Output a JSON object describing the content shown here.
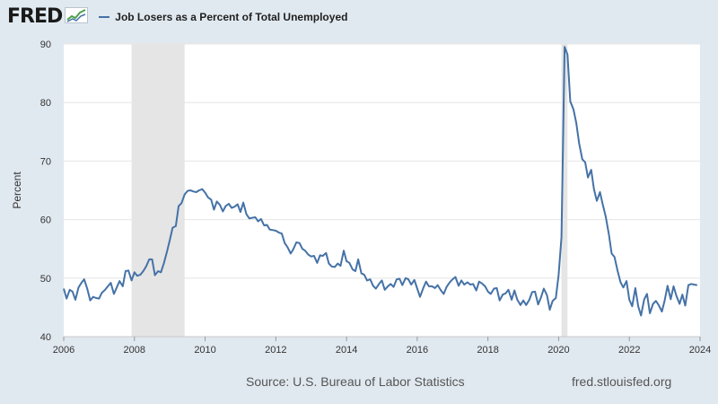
{
  "header": {
    "logo_text": "FRED",
    "logo_icon": "trend-chart-icon",
    "legend_label": "Job Losers as a Percent of Total Unemployed"
  },
  "footer": {
    "source": "Source: U.S. Bureau of Labor Statistics",
    "site": "fred.stlouisfed.org"
  },
  "colors": {
    "series": "#4572a7",
    "recession": "#e5e5e5",
    "background": "#e1e9f0",
    "plot": "#ffffff",
    "grid": "#e6e6e6"
  },
  "chart_data": {
    "type": "line",
    "title": "",
    "xlabel": "",
    "ylabel": "Percent",
    "xlim": [
      2006.0,
      2024.0
    ],
    "ylim": [
      40,
      90
    ],
    "yticks": [
      40,
      50,
      60,
      70,
      80,
      90
    ],
    "xticks": [
      2006,
      2008,
      2010,
      2012,
      2014,
      2016,
      2018,
      2020,
      2022,
      2024
    ],
    "grid": "horizontal",
    "legend": "top-left",
    "recessions": [
      [
        2007.92,
        2009.42
      ],
      [
        2020.08,
        2020.25
      ]
    ],
    "series": [
      {
        "name": "Job Losers as a Percent of Total Unemployed",
        "points": [
          [
            2006.0,
            48.2
          ],
          [
            2006.08,
            46.5
          ],
          [
            2006.17,
            48.0
          ],
          [
            2006.25,
            47.7
          ],
          [
            2006.33,
            46.3
          ],
          [
            2006.42,
            48.4
          ],
          [
            2006.5,
            49.2
          ],
          [
            2006.58,
            49.8
          ],
          [
            2006.67,
            48.1
          ],
          [
            2006.75,
            46.2
          ],
          [
            2006.83,
            46.8
          ],
          [
            2006.92,
            46.6
          ],
          [
            2007.0,
            46.5
          ],
          [
            2007.08,
            47.5
          ],
          [
            2007.17,
            48.0
          ],
          [
            2007.25,
            48.6
          ],
          [
            2007.33,
            49.2
          ],
          [
            2007.42,
            47.3
          ],
          [
            2007.5,
            48.4
          ],
          [
            2007.58,
            49.5
          ],
          [
            2007.67,
            48.6
          ],
          [
            2007.75,
            51.2
          ],
          [
            2007.83,
            51.3
          ],
          [
            2007.92,
            49.6
          ],
          [
            2008.0,
            51.0
          ],
          [
            2008.08,
            50.4
          ],
          [
            2008.17,
            50.6
          ],
          [
            2008.25,
            51.2
          ],
          [
            2008.33,
            52.0
          ],
          [
            2008.42,
            53.2
          ],
          [
            2008.5,
            53.2
          ],
          [
            2008.58,
            50.5
          ],
          [
            2008.67,
            51.2
          ],
          [
            2008.75,
            51.0
          ],
          [
            2008.83,
            52.5
          ],
          [
            2008.92,
            54.5
          ],
          [
            2009.0,
            56.5
          ],
          [
            2009.08,
            58.6
          ],
          [
            2009.17,
            58.9
          ],
          [
            2009.25,
            62.3
          ],
          [
            2009.33,
            62.8
          ],
          [
            2009.42,
            64.3
          ],
          [
            2009.5,
            64.9
          ],
          [
            2009.58,
            65.0
          ],
          [
            2009.67,
            64.8
          ],
          [
            2009.75,
            64.7
          ],
          [
            2009.83,
            65.0
          ],
          [
            2009.92,
            65.2
          ],
          [
            2010.0,
            64.6
          ],
          [
            2010.08,
            63.8
          ],
          [
            2010.17,
            63.4
          ],
          [
            2010.25,
            61.7
          ],
          [
            2010.33,
            63.1
          ],
          [
            2010.42,
            62.5
          ],
          [
            2010.5,
            61.4
          ],
          [
            2010.58,
            62.3
          ],
          [
            2010.67,
            62.7
          ],
          [
            2010.75,
            62.0
          ],
          [
            2010.83,
            62.2
          ],
          [
            2010.92,
            62.6
          ],
          [
            2011.0,
            61.3
          ],
          [
            2011.08,
            62.9
          ],
          [
            2011.17,
            60.9
          ],
          [
            2011.25,
            60.2
          ],
          [
            2011.33,
            60.3
          ],
          [
            2011.42,
            60.4
          ],
          [
            2011.5,
            59.7
          ],
          [
            2011.58,
            60.1
          ],
          [
            2011.67,
            59.0
          ],
          [
            2011.75,
            59.1
          ],
          [
            2011.83,
            58.3
          ],
          [
            2011.92,
            58.2
          ],
          [
            2012.0,
            58.1
          ],
          [
            2012.08,
            57.8
          ],
          [
            2012.17,
            57.6
          ],
          [
            2012.25,
            56.0
          ],
          [
            2012.33,
            55.3
          ],
          [
            2012.42,
            54.2
          ],
          [
            2012.5,
            55.0
          ],
          [
            2012.58,
            56.1
          ],
          [
            2012.67,
            56.0
          ],
          [
            2012.75,
            55.0
          ],
          [
            2012.83,
            54.7
          ],
          [
            2012.92,
            54.0
          ],
          [
            2013.0,
            53.7
          ],
          [
            2013.08,
            53.8
          ],
          [
            2013.17,
            52.6
          ],
          [
            2013.25,
            53.9
          ],
          [
            2013.33,
            53.8
          ],
          [
            2013.42,
            54.3
          ],
          [
            2013.5,
            52.5
          ],
          [
            2013.58,
            52.0
          ],
          [
            2013.67,
            51.9
          ],
          [
            2013.75,
            52.5
          ],
          [
            2013.83,
            52.1
          ],
          [
            2013.92,
            54.7
          ],
          [
            2014.0,
            52.9
          ],
          [
            2014.08,
            52.6
          ],
          [
            2014.17,
            51.5
          ],
          [
            2014.25,
            51.2
          ],
          [
            2014.33,
            53.2
          ],
          [
            2014.42,
            50.8
          ],
          [
            2014.5,
            50.6
          ],
          [
            2014.58,
            49.6
          ],
          [
            2014.67,
            49.8
          ],
          [
            2014.75,
            48.7
          ],
          [
            2014.83,
            48.2
          ],
          [
            2014.92,
            49.0
          ],
          [
            2015.0,
            49.6
          ],
          [
            2015.08,
            48.0
          ],
          [
            2015.17,
            48.6
          ],
          [
            2015.25,
            49.0
          ],
          [
            2015.33,
            48.5
          ],
          [
            2015.42,
            49.8
          ],
          [
            2015.5,
            49.9
          ],
          [
            2015.58,
            48.8
          ],
          [
            2015.67,
            50.0
          ],
          [
            2015.75,
            49.8
          ],
          [
            2015.83,
            48.9
          ],
          [
            2015.92,
            49.7
          ],
          [
            2016.0,
            48.2
          ],
          [
            2016.08,
            46.8
          ],
          [
            2016.17,
            48.3
          ],
          [
            2016.25,
            49.4
          ],
          [
            2016.33,
            48.6
          ],
          [
            2016.42,
            48.6
          ],
          [
            2016.5,
            48.3
          ],
          [
            2016.58,
            48.8
          ],
          [
            2016.67,
            47.9
          ],
          [
            2016.75,
            47.3
          ],
          [
            2016.83,
            48.5
          ],
          [
            2016.92,
            49.3
          ],
          [
            2017.0,
            49.8
          ],
          [
            2017.08,
            50.2
          ],
          [
            2017.17,
            48.7
          ],
          [
            2017.25,
            49.6
          ],
          [
            2017.33,
            48.9
          ],
          [
            2017.42,
            49.3
          ],
          [
            2017.5,
            48.9
          ],
          [
            2017.58,
            49.0
          ],
          [
            2017.67,
            47.9
          ],
          [
            2017.75,
            49.4
          ],
          [
            2017.83,
            49.1
          ],
          [
            2017.92,
            48.6
          ],
          [
            2018.0,
            47.7
          ],
          [
            2018.08,
            47.3
          ],
          [
            2018.17,
            48.2
          ],
          [
            2018.25,
            48.3
          ],
          [
            2018.33,
            46.2
          ],
          [
            2018.42,
            47.2
          ],
          [
            2018.5,
            47.4
          ],
          [
            2018.58,
            48.0
          ],
          [
            2018.67,
            46.3
          ],
          [
            2018.75,
            47.9
          ],
          [
            2018.83,
            46.3
          ],
          [
            2018.92,
            45.4
          ],
          [
            2019.0,
            46.2
          ],
          [
            2019.08,
            45.4
          ],
          [
            2019.17,
            46.3
          ],
          [
            2019.25,
            47.6
          ],
          [
            2019.33,
            47.7
          ],
          [
            2019.42,
            45.5
          ],
          [
            2019.5,
            46.7
          ],
          [
            2019.58,
            48.2
          ],
          [
            2019.67,
            47.1
          ],
          [
            2019.75,
            44.6
          ],
          [
            2019.83,
            46.1
          ],
          [
            2019.92,
            46.6
          ],
          [
            2020.0,
            50.5
          ],
          [
            2020.08,
            57.0
          ],
          [
            2020.17,
            89.5
          ],
          [
            2020.25,
            88.2
          ],
          [
            2020.33,
            80.2
          ],
          [
            2020.42,
            78.8
          ],
          [
            2020.5,
            76.5
          ],
          [
            2020.58,
            73.0
          ],
          [
            2020.67,
            70.3
          ],
          [
            2020.75,
            69.8
          ],
          [
            2020.83,
            67.2
          ],
          [
            2020.92,
            68.5
          ],
          [
            2021.0,
            65.2
          ],
          [
            2021.08,
            63.2
          ],
          [
            2021.17,
            64.7
          ],
          [
            2021.25,
            62.5
          ],
          [
            2021.33,
            60.6
          ],
          [
            2021.42,
            57.5
          ],
          [
            2021.5,
            54.2
          ],
          [
            2021.58,
            53.6
          ],
          [
            2021.67,
            51.2
          ],
          [
            2021.75,
            49.3
          ],
          [
            2021.83,
            48.4
          ],
          [
            2021.92,
            49.5
          ],
          [
            2022.0,
            46.3
          ],
          [
            2022.08,
            45.2
          ],
          [
            2022.17,
            48.3
          ],
          [
            2022.25,
            45.2
          ],
          [
            2022.33,
            43.6
          ],
          [
            2022.42,
            46.4
          ],
          [
            2022.5,
            47.3
          ],
          [
            2022.58,
            44.0
          ],
          [
            2022.67,
            45.6
          ],
          [
            2022.75,
            46.1
          ],
          [
            2022.83,
            45.4
          ],
          [
            2022.92,
            44.3
          ],
          [
            2023.0,
            46.2
          ],
          [
            2023.08,
            48.7
          ],
          [
            2023.17,
            46.4
          ],
          [
            2023.25,
            48.6
          ],
          [
            2023.33,
            47.0
          ],
          [
            2023.42,
            45.6
          ],
          [
            2023.5,
            47.2
          ],
          [
            2023.58,
            45.3
          ],
          [
            2023.67,
            48.8
          ],
          [
            2023.75,
            49.0
          ],
          [
            2023.83,
            48.9
          ],
          [
            2023.92,
            48.8
          ]
        ]
      }
    ]
  }
}
